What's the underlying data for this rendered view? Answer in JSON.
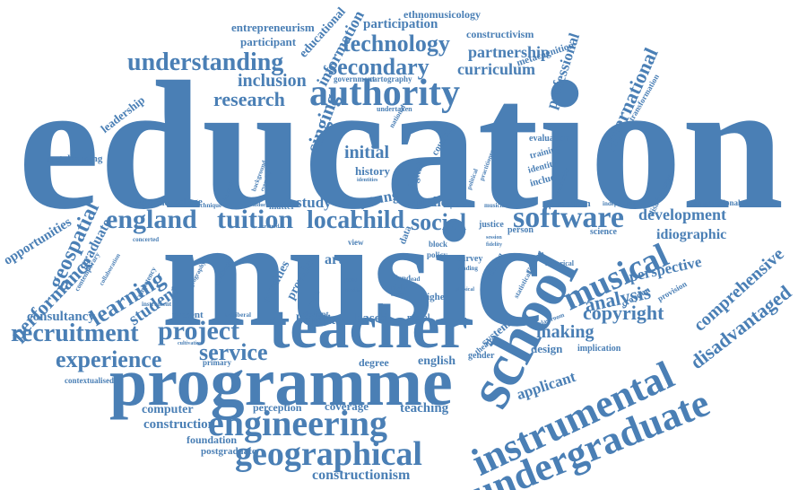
{
  "colors": {
    "word": "#4a7fb5",
    "background": "#ffffff"
  },
  "words": {
    "education": "education",
    "music": "music",
    "programme": "programme",
    "teacher": "teacher",
    "school": "school",
    "authority": "authority",
    "instrumental": "instrumental",
    "undergraduate": "undergraduate",
    "engineering": "engineering",
    "geographical": "geographical",
    "software": "software",
    "musical": "musical",
    "england": "england",
    "tuition": "tuition",
    "local": "local",
    "child": "child",
    "social": "social",
    "project": "project",
    "recruitment": "recruitment",
    "experience": "experience",
    "service": "service",
    "technology": "technology",
    "understanding": "understanding",
    "secondary": "secondary",
    "research": "research",
    "inclusion": "inclusion",
    "curriculum": "curriculum",
    "partnership": "partnership",
    "participation": "participation",
    "entrepreneurism": "entrepreneurism",
    "participant": "participant",
    "educational": "educational",
    "information": "information",
    "ethnomusicology": "ethnomusicology",
    "constructivism": "constructivism",
    "metacognition": "metacognition",
    "professional": "professional",
    "international": "international",
    "singing": "singing",
    "leadership": "leadership",
    "metalearning": "metalearning",
    "initial": "initial",
    "history": "history",
    "study": "study",
    "young": "young",
    "studies": "studies",
    "geospatial": "geospatial",
    "graduate": "graduate",
    "opportunities": "opportunities",
    "performance": "performance",
    "learning": "learning",
    "student": "student",
    "consultancy": "consultancy",
    "present": "present",
    "benefit": "benefit",
    "based": "based",
    "copyright": "copyright",
    "making": "making",
    "design": "design",
    "applicant": "applicant",
    "development": "development",
    "idiographic": "idiographic",
    "perspective": "perspective",
    "analysis": "analysis",
    "comprehensive": "comprehensive",
    "disadvantaged": "disadvantaged",
    "computer": "computer",
    "construction": "construction",
    "foundation": "foundation",
    "postgraduate": "postgraduate",
    "constructionism": "constructionism",
    "contextualised": "contextualised",
    "perception": "perception",
    "coverage": "coverage",
    "teaching": "teaching",
    "english": "english",
    "degree": "degree",
    "gender": "gender",
    "moral": "moral",
    "higher": "higher",
    "survey": "survey",
    "royalties": "royalties",
    "provider": "provider",
    "matter": "matter",
    "art": "art",
    "view": "view",
    "fund": "fund",
    "digital": "digital",
    "council": "council",
    "justice": "justice",
    "person": "person",
    "science": "science",
    "modern": "modern",
    "computational": "computational",
    "independent": "independent",
    "evaluation": "evaluation",
    "training": "training",
    "identity": "identity",
    "include": "include",
    "croydon": "croydon",
    "provision": "provision",
    "historical": "historical",
    "statistical": "statistical",
    "finding": "finding",
    "system": "system",
    "theatre": "theatre",
    "implication": "implication",
    "college": "college",
    "economic": "economic",
    "technique": "technique",
    "keystone": "keystone",
    "contemporary": "contemporary",
    "collaboration": "collaboration",
    "concerted": "concerted",
    "competency": "competency",
    "geography": "geography",
    "challenge": "challenge",
    "instrument": "instrument",
    "neoliberal": "neoliberal",
    "deviant": "deviant",
    "primary": "primary",
    "cultivation": "cultivation",
    "government": "government",
    "cartography": "cartography",
    "undertaken": "undertaken",
    "national": "national",
    "transformation": "transformation",
    "disadvantage": "disadvantage",
    "classroom": "classroom",
    "policy": "policy",
    "block": "block",
    "relating": "relating",
    "reading": "reading",
    "media": "media",
    "youth": "youth",
    "post": "post",
    "possible": "possible",
    "right": "right",
    "career": "career",
    "data": "data",
    "lead": "lead",
    "physical": "physical",
    "community": "community",
    "musician": "musician",
    "session": "session",
    "fidelity": "fidelity",
    "induction": "induction",
    "centred": "centred",
    "background": "background",
    "everyday": "everyday",
    "identities": "identities",
    "political": "political",
    "practitioner": "practitioner"
  }
}
